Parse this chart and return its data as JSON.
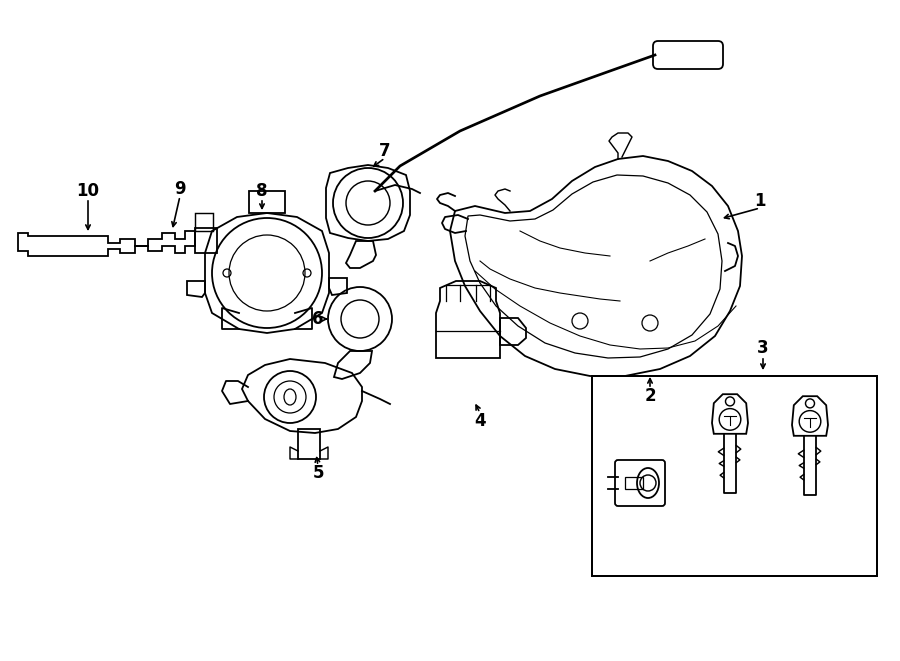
{
  "bg": "#ffffff",
  "lc": "#000000",
  "lw": 1.3,
  "fig_w": 9.0,
  "fig_h": 6.61,
  "dpi": 100,
  "parts": {
    "label_fontsize": 12,
    "arrow_lw": 1.2
  }
}
